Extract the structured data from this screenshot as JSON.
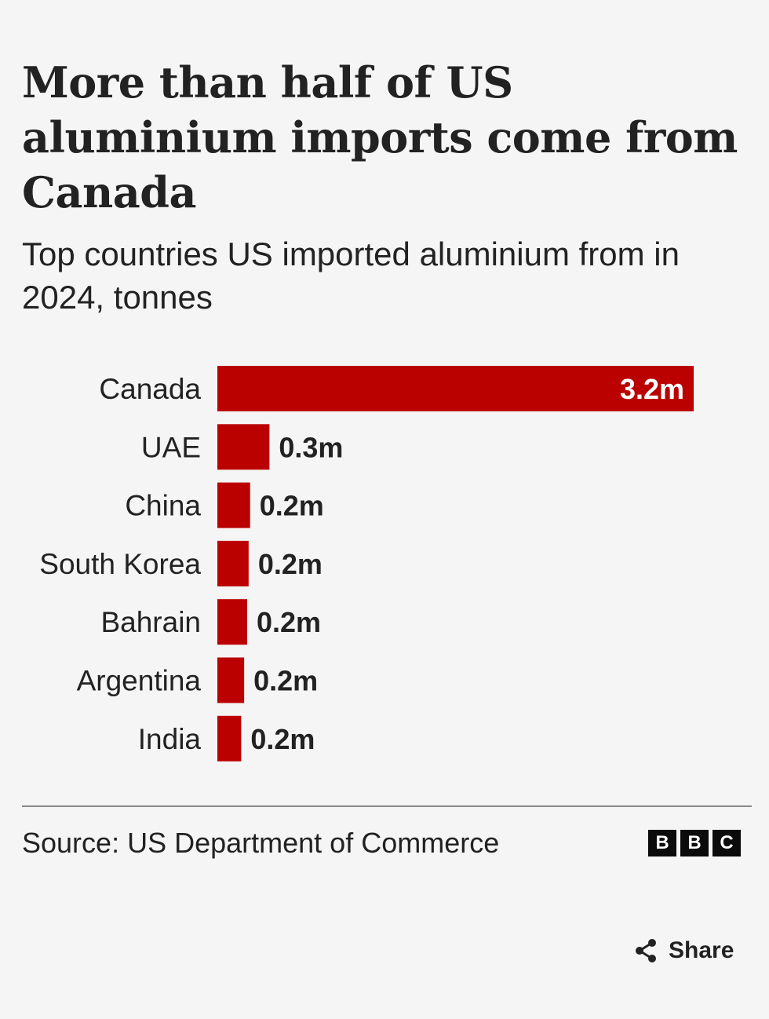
{
  "title": "More than half of US aluminium imports come from Canada",
  "subtitle": "Top countries US imported aluminium from in 2024, tonnes",
  "source": "Source: US Department of Commerce",
  "logo": [
    "B",
    "B",
    "C"
  ],
  "share_label": "Share",
  "icons": {
    "share": "share-icon"
  },
  "colors": {
    "bar": "#bb0000",
    "text": "#222222",
    "background": "#f5f5f5",
    "label_inside": "#ffffff"
  },
  "chart_data": {
    "type": "bar",
    "orientation": "horizontal",
    "categories": [
      "Canada",
      "UAE",
      "China",
      "South Korea",
      "Bahrain",
      "Argentina",
      "India"
    ],
    "values": [
      3.2,
      0.35,
      0.22,
      0.21,
      0.2,
      0.18,
      0.16
    ],
    "value_labels": [
      "3.2m",
      "0.3m",
      "0.2m",
      "0.2m",
      "0.2m",
      "0.2m",
      "0.2m"
    ],
    "unit": "tonnes",
    "xlim": [
      0,
      3.2
    ],
    "grid": false,
    "legend": "none"
  }
}
